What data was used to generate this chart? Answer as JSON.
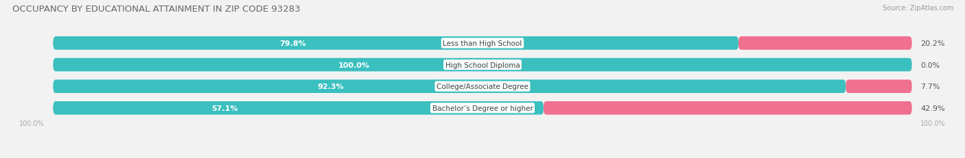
{
  "title": "OCCUPANCY BY EDUCATIONAL ATTAINMENT IN ZIP CODE 93283",
  "source": "Source: ZipAtlas.com",
  "categories": [
    "Less than High School",
    "High School Diploma",
    "College/Associate Degree",
    "Bachelor’s Degree or higher"
  ],
  "owner_pct": [
    79.8,
    100.0,
    92.3,
    57.1
  ],
  "renter_pct": [
    20.2,
    0.0,
    7.7,
    42.9
  ],
  "owner_color": "#3BBFBF",
  "renter_color": "#F07090",
  "bg_color": "#f2f2f2",
  "row_bg_color": "#e8e8e8",
  "title_fontsize": 9.5,
  "source_fontsize": 7,
  "label_fontsize": 8,
  "cat_fontsize": 7.5,
  "bar_height": 0.62,
  "owner_label_color": "white",
  "pct_label_color": "#555555",
  "axis_label_color": "#aaaaaa"
}
